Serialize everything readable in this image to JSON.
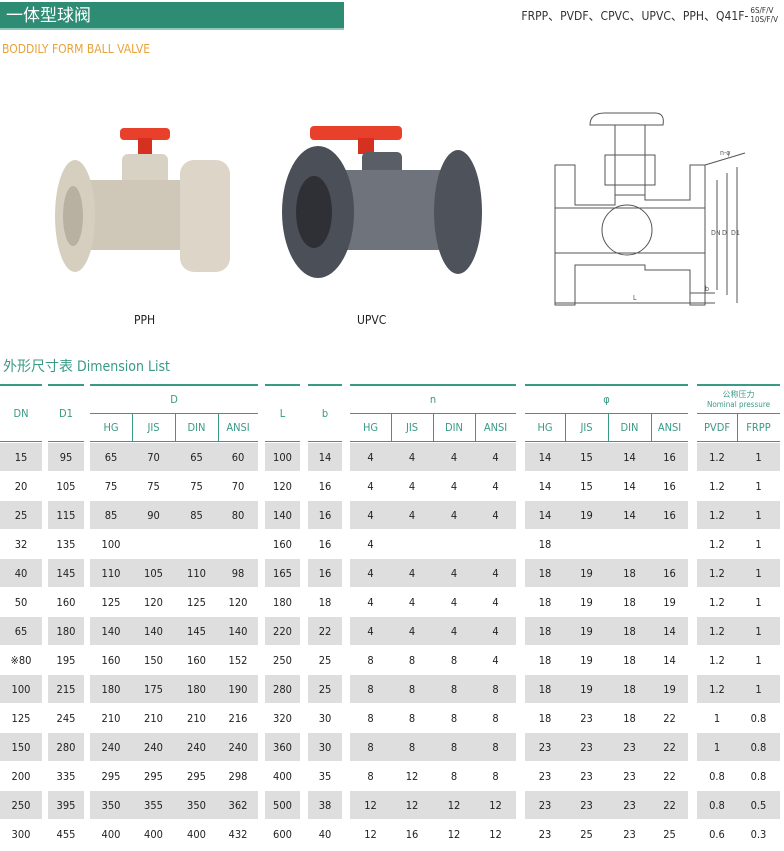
{
  "header": {
    "title": "一体型球阀",
    "models": "FRPP、PVDF、CPVC、UPVC、PPH、Q41F-",
    "model_suffix_top": "6S/F/V",
    "model_suffix_bottom": "10S/F/V",
    "subtitle": "BODDILY FORM BALL VALVE"
  },
  "colors": {
    "title_bar": "#2e8b74",
    "accent_teal": "#3a9a86",
    "subtitle_orange": "#e8a23a",
    "row_gray": "#dedede",
    "handle_red": "#e8402a"
  },
  "products": [
    {
      "label": "PPH"
    },
    {
      "label": "UPVC"
    }
  ],
  "drawing_labels": {
    "n_phi": "n-φ",
    "dn": "DN",
    "d": "D",
    "d1": "D1",
    "l": "L",
    "b": "b"
  },
  "table": {
    "title": "外形尺寸表 Dimension List",
    "groups": [
      "DN",
      "D1",
      "D",
      "L",
      "b",
      "n",
      "φ",
      "公称压力"
    ],
    "pressure_sub": "Nominal pressure",
    "subheaders": [
      "HG",
      "JIS",
      "DIN",
      "ANSI",
      "HG",
      "JIS",
      "DIN",
      "ANSI",
      "HG",
      "JIS",
      "DIN",
      "ANSI",
      "PVDF",
      "FRPP"
    ],
    "rows": [
      [
        "15",
        "95",
        "65",
        "70",
        "65",
        "60",
        "100",
        "14",
        "4",
        "4",
        "4",
        "4",
        "14",
        "15",
        "14",
        "16",
        "1.2",
        "1"
      ],
      [
        "20",
        "105",
        "75",
        "75",
        "75",
        "70",
        "120",
        "16",
        "4",
        "4",
        "4",
        "4",
        "14",
        "15",
        "14",
        "16",
        "1.2",
        "1"
      ],
      [
        "25",
        "115",
        "85",
        "90",
        "85",
        "80",
        "140",
        "16",
        "4",
        "4",
        "4",
        "4",
        "14",
        "19",
        "14",
        "16",
        "1.2",
        "1"
      ],
      [
        "32",
        "135",
        "100",
        "",
        "",
        "",
        "160",
        "16",
        "4",
        "",
        "",
        "",
        "18",
        "",
        "",
        "",
        "1.2",
        "1"
      ],
      [
        "40",
        "145",
        "110",
        "105",
        "110",
        "98",
        "165",
        "16",
        "4",
        "4",
        "4",
        "4",
        "18",
        "19",
        "18",
        "16",
        "1.2",
        "1"
      ],
      [
        "50",
        "160",
        "125",
        "120",
        "125",
        "120",
        "180",
        "18",
        "4",
        "4",
        "4",
        "4",
        "18",
        "19",
        "18",
        "19",
        "1.2",
        "1"
      ],
      [
        "65",
        "180",
        "140",
        "140",
        "145",
        "140",
        "220",
        "22",
        "4",
        "4",
        "4",
        "4",
        "18",
        "19",
        "18",
        "14",
        "1.2",
        "1"
      ],
      [
        "※80",
        "195",
        "160",
        "150",
        "160",
        "152",
        "250",
        "25",
        "8",
        "8",
        "8",
        "4",
        "18",
        "19",
        "18",
        "14",
        "1.2",
        "1"
      ],
      [
        "100",
        "215",
        "180",
        "175",
        "180",
        "190",
        "280",
        "25",
        "8",
        "8",
        "8",
        "8",
        "18",
        "19",
        "18",
        "19",
        "1.2",
        "1"
      ],
      [
        "125",
        "245",
        "210",
        "210",
        "210",
        "216",
        "320",
        "30",
        "8",
        "8",
        "8",
        "8",
        "18",
        "23",
        "18",
        "22",
        "1",
        "0.8"
      ],
      [
        "150",
        "280",
        "240",
        "240",
        "240",
        "240",
        "360",
        "30",
        "8",
        "8",
        "8",
        "8",
        "23",
        "23",
        "23",
        "22",
        "1",
        "0.8"
      ],
      [
        "200",
        "335",
        "295",
        "295",
        "295",
        "298",
        "400",
        "35",
        "8",
        "12",
        "8",
        "8",
        "23",
        "23",
        "23",
        "22",
        "0.8",
        "0.8"
      ],
      [
        "250",
        "395",
        "350",
        "355",
        "350",
        "362",
        "500",
        "38",
        "12",
        "12",
        "12",
        "12",
        "23",
        "23",
        "23",
        "22",
        "0.8",
        "0.5"
      ],
      [
        "300",
        "455",
        "400",
        "400",
        "400",
        "432",
        "600",
        "40",
        "12",
        "16",
        "12",
        "12",
        "23",
        "25",
        "23",
        "25",
        "0.6",
        "0.3"
      ]
    ]
  }
}
